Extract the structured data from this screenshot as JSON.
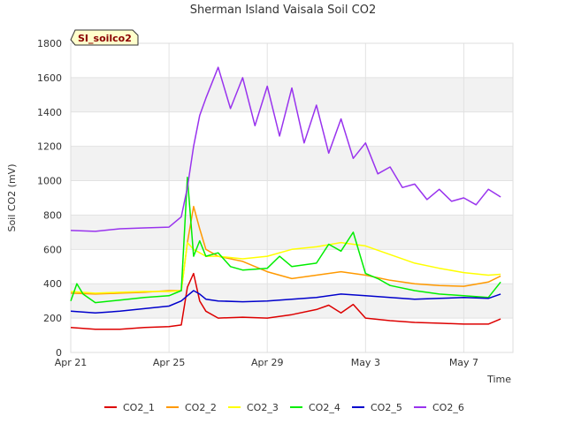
{
  "chart_data": {
    "type": "line",
    "title": "Sherman Island Vaisala Soil CO2",
    "badge": "SI_soilco2",
    "xlabel": "Time",
    "ylabel": "Soil CO2 (mV)",
    "ylim": [
      0,
      1800
    ],
    "yticks": [
      0,
      200,
      400,
      600,
      800,
      1000,
      1200,
      1400,
      1600,
      1800
    ],
    "xlim": [
      "2024-04-21",
      "2024-05-09"
    ],
    "xticks": [
      {
        "x": "2024-04-21",
        "label": "Apr 21"
      },
      {
        "x": "2024-04-25",
        "label": "Apr 25"
      },
      {
        "x": "2024-04-29",
        "label": "Apr 29"
      },
      {
        "x": "2024-05-03",
        "label": "May 3"
      },
      {
        "x": "2024-05-07",
        "label": "May 7"
      }
    ],
    "grid": true,
    "legend": "bottom",
    "series": [
      {
        "name": "CO2_1",
        "color": "#dd0000",
        "x": [
          "2024-04-21",
          "2024-04-22",
          "2024-04-23",
          "2024-04-24",
          "2024-04-25",
          "2024-04-25T12:00",
          "2024-04-25T18:00",
          "2024-04-26",
          "2024-04-26T06:00",
          "2024-04-26T12:00",
          "2024-04-27",
          "2024-04-28",
          "2024-04-29",
          "2024-04-30",
          "2024-05-01",
          "2024-05-01T12:00",
          "2024-05-02",
          "2024-05-02T12:00",
          "2024-05-03",
          "2024-05-04",
          "2024-05-05",
          "2024-05-06",
          "2024-05-07",
          "2024-05-08",
          "2024-05-08T12:00"
        ],
        "y": [
          145,
          135,
          135,
          145,
          150,
          160,
          380,
          460,
          300,
          240,
          200,
          205,
          200,
          220,
          250,
          275,
          230,
          280,
          200,
          185,
          175,
          170,
          165,
          165,
          195
        ]
      },
      {
        "name": "CO2_2",
        "color": "#ff9900",
        "x": [
          "2024-04-21",
          "2024-04-22",
          "2024-04-23",
          "2024-04-24",
          "2024-04-25",
          "2024-04-25T12:00",
          "2024-04-25T18:00",
          "2024-04-26",
          "2024-04-26T06:00",
          "2024-04-26T12:00",
          "2024-04-27",
          "2024-04-28",
          "2024-04-29",
          "2024-04-30",
          "2024-05-01",
          "2024-05-02",
          "2024-05-03",
          "2024-05-04",
          "2024-05-05",
          "2024-05-06",
          "2024-05-07",
          "2024-05-08",
          "2024-05-08T12:00"
        ],
        "y": [
          345,
          340,
          345,
          350,
          360,
          360,
          640,
          850,
          720,
          600,
          560,
          530,
          470,
          430,
          450,
          470,
          450,
          420,
          400,
          390,
          385,
          410,
          445
        ]
      },
      {
        "name": "CO2_3",
        "color": "#ffff00",
        "x": [
          "2024-04-21",
          "2024-04-22",
          "2024-04-23",
          "2024-04-24",
          "2024-04-25",
          "2024-04-25T12:00",
          "2024-04-25T18:00",
          "2024-04-26",
          "2024-04-26T06:00",
          "2024-04-26T12:00",
          "2024-04-27",
          "2024-04-28",
          "2024-04-29",
          "2024-04-30",
          "2024-05-01",
          "2024-05-02",
          "2024-05-03",
          "2024-05-04",
          "2024-05-05",
          "2024-05-06",
          "2024-05-07",
          "2024-05-08",
          "2024-05-08T12:00"
        ],
        "y": [
          355,
          345,
          350,
          355,
          355,
          360,
          640,
          600,
          580,
          560,
          560,
          545,
          560,
          600,
          615,
          640,
          620,
          570,
          520,
          490,
          465,
          450,
          455
        ]
      },
      {
        "name": "CO2_4",
        "color": "#00ee00",
        "x": [
          "2024-04-21",
          "2024-04-21T06:00",
          "2024-04-21T12:00",
          "2024-04-22",
          "2024-04-23",
          "2024-04-24",
          "2024-04-25",
          "2024-04-25T12:00",
          "2024-04-25T18:00",
          "2024-04-26",
          "2024-04-26T06:00",
          "2024-04-26T12:00",
          "2024-04-27",
          "2024-04-27T12:00",
          "2024-04-28",
          "2024-04-29",
          "2024-04-29T12:00",
          "2024-04-30",
          "2024-05-01",
          "2024-05-01T12:00",
          "2024-05-02",
          "2024-05-02T12:00",
          "2024-05-03",
          "2024-05-03T12:00",
          "2024-05-04",
          "2024-05-05",
          "2024-05-06",
          "2024-05-07",
          "2024-05-08",
          "2024-05-08T12:00"
        ],
        "y": [
          300,
          400,
          340,
          290,
          305,
          320,
          330,
          360,
          1020,
          560,
          650,
          560,
          580,
          500,
          480,
          490,
          560,
          500,
          520,
          630,
          590,
          700,
          460,
          430,
          390,
          360,
          340,
          330,
          320,
          410
        ]
      },
      {
        "name": "CO2_5",
        "color": "#0000cc",
        "x": [
          "2024-04-21",
          "2024-04-22",
          "2024-04-23",
          "2024-04-24",
          "2024-04-25",
          "2024-04-25T12:00",
          "2024-04-25T18:00",
          "2024-04-26",
          "2024-04-26T06:00",
          "2024-04-26T12:00",
          "2024-04-27",
          "2024-04-28",
          "2024-04-29",
          "2024-04-30",
          "2024-05-01",
          "2024-05-02",
          "2024-05-03",
          "2024-05-04",
          "2024-05-05",
          "2024-05-06",
          "2024-05-07",
          "2024-05-08",
          "2024-05-08T12:00"
        ],
        "y": [
          240,
          230,
          240,
          255,
          270,
          300,
          330,
          360,
          340,
          310,
          300,
          295,
          300,
          310,
          320,
          340,
          330,
          320,
          310,
          315,
          320,
          315,
          340
        ]
      },
      {
        "name": "CO2_6",
        "color": "#9933ee",
        "x": [
          "2024-04-21",
          "2024-04-22",
          "2024-04-23",
          "2024-04-24",
          "2024-04-25",
          "2024-04-25T12:00",
          "2024-04-25T18:00",
          "2024-04-26",
          "2024-04-26T06:00",
          "2024-04-26T12:00",
          "2024-04-27",
          "2024-04-27T12:00",
          "2024-04-28",
          "2024-04-28T12:00",
          "2024-04-29",
          "2024-04-29T12:00",
          "2024-04-30",
          "2024-04-30T12:00",
          "2024-05-01",
          "2024-05-01T12:00",
          "2024-05-02",
          "2024-05-02T12:00",
          "2024-05-03",
          "2024-05-03T12:00",
          "2024-05-04",
          "2024-05-04T12:00",
          "2024-05-05",
          "2024-05-05T12:00",
          "2024-05-06",
          "2024-05-06T12:00",
          "2024-05-07",
          "2024-05-07T12:00",
          "2024-05-08",
          "2024-05-08T12:00"
        ],
        "y": [
          710,
          705,
          720,
          725,
          730,
          790,
          960,
          1200,
          1380,
          1480,
          1660,
          1420,
          1600,
          1320,
          1550,
          1260,
          1540,
          1220,
          1440,
          1160,
          1360,
          1130,
          1220,
          1040,
          1080,
          960,
          980,
          890,
          950,
          880,
          900,
          860,
          950,
          905
        ]
      }
    ]
  }
}
